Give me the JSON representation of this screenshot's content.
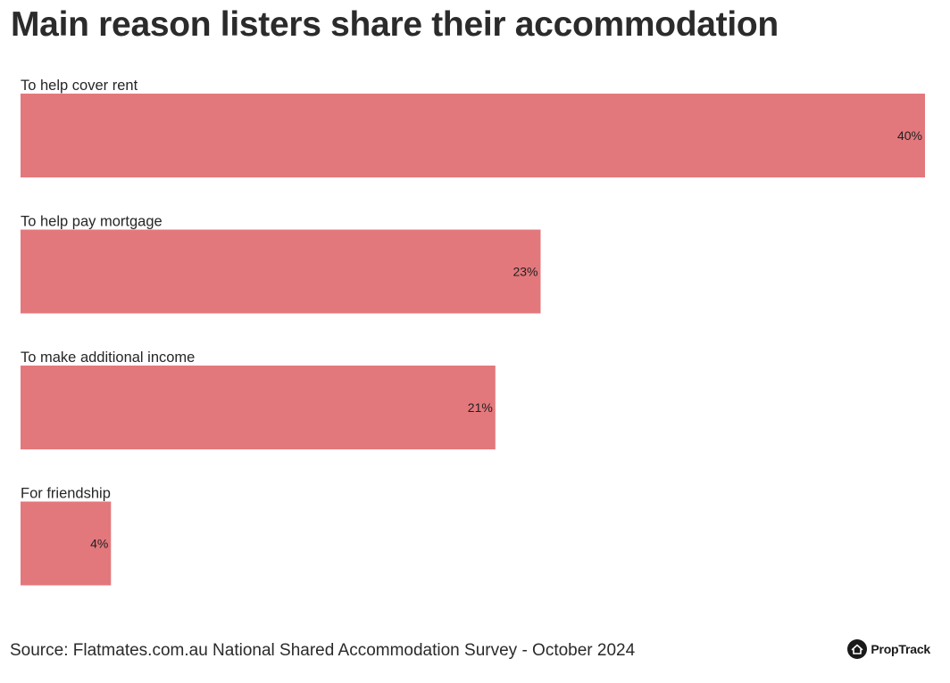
{
  "title": "Main reason listers share their accommodation",
  "source": "Source: Flatmates.com.au National Shared Accommodation Survey - October 2024",
  "brand": {
    "name": "PropTrack",
    "icon": "house-icon"
  },
  "colors": {
    "bar": "#e3787c",
    "text": "#262626"
  },
  "chart_data": {
    "type": "bar",
    "orientation": "horizontal",
    "categories": [
      "To help cover rent",
      "To help pay mortgage",
      "To make additional income",
      "For friendship"
    ],
    "values": [
      40,
      23,
      21,
      4
    ],
    "value_labels": [
      "40%",
      "23%",
      "21%",
      "4%"
    ],
    "xlim": [
      0,
      40
    ],
    "grid": false,
    "legend": "none"
  }
}
